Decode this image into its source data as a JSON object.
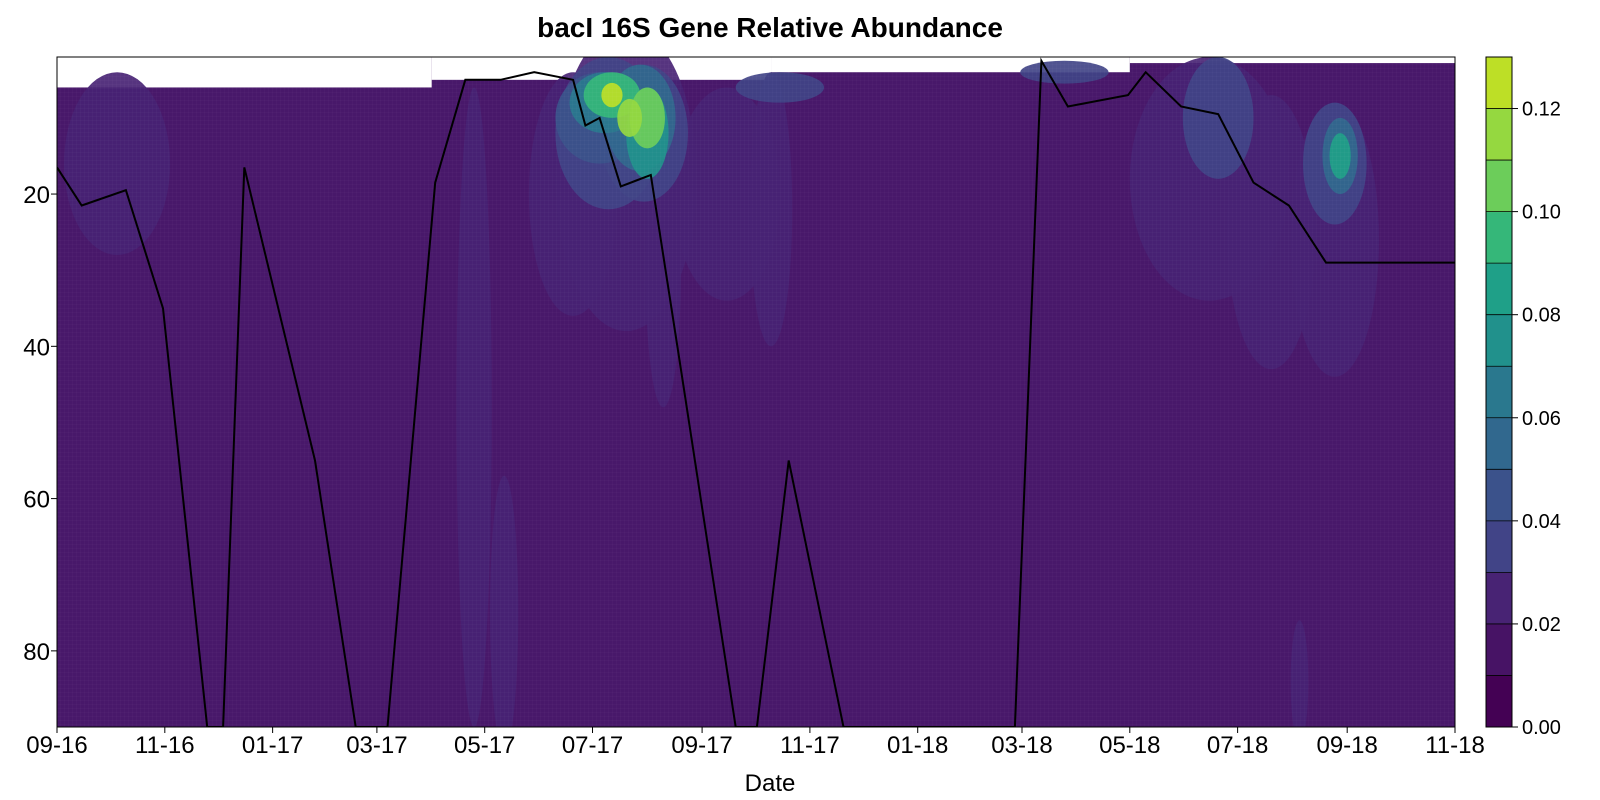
{
  "chart_data": {
    "type": "heatmap",
    "title": "bacI 16S Gene Relative Abundance",
    "xlabel": "Date",
    "ylabel": "",
    "x_ticks": [
      "09-16",
      "11-16",
      "01-17",
      "03-17",
      "05-17",
      "07-17",
      "09-17",
      "11-17",
      "01-18",
      "03-18",
      "05-18",
      "07-18",
      "09-18",
      "11-18"
    ],
    "y_ticks": [
      20,
      40,
      60,
      80
    ],
    "ylim": [
      90,
      2
    ],
    "y_inverted": true,
    "colorbar": {
      "ticks": [
        "0.00",
        "0.02",
        "0.04",
        "0.06",
        "0.08",
        "0.10",
        "0.12"
      ],
      "levels": [
        0.0,
        0.01,
        0.02,
        0.03,
        0.04,
        0.05,
        0.06,
        0.07,
        0.08,
        0.09,
        0.1,
        0.11,
        0.12,
        0.13
      ],
      "colors": [
        "#440154",
        "#471365",
        "#482374",
        "#414487",
        "#3b528b",
        "#31688e",
        "#2a788e",
        "#21918c",
        "#1fa088",
        "#35b779",
        "#6ccd5a",
        "#95d840",
        "#bddf26",
        "#fde725"
      ],
      "colormap": "viridis"
    },
    "background_color": "#48186a",
    "surface_depth": {
      "dates": [
        "2016-09-01",
        "2016-09-15",
        "2016-10-10",
        "2016-10-31",
        "2016-11-25",
        "2016-12-04",
        "2016-12-16",
        "2017-01-25",
        "2017-02-17",
        "2017-03-07",
        "2017-04-03",
        "2017-04-20",
        "2017-05-10",
        "2017-05-29",
        "2017-06-20",
        "2017-06-27",
        "2017-07-05",
        "2017-07-17",
        "2017-08-03",
        "2017-08-20",
        "2017-09-20",
        "2017-10-02",
        "2017-10-20",
        "2017-11-20",
        "2018-02-25",
        "2018-03-12",
        "2018-03-27",
        "2018-04-30",
        "2018-05-10",
        "2018-05-30",
        "2018-06-20",
        "2018-07-10",
        "2018-07-30",
        "2018-08-20",
        "2018-09-10",
        "2018-09-30",
        "2018-10-20",
        "2018-11-10"
      ],
      "depths": [
        16.5,
        21.5,
        19.5,
        35.0,
        90.0,
        90.0,
        16.5,
        55.0,
        90.0,
        90.0,
        18.5,
        5.0,
        5.0,
        4.0,
        5.0,
        11.0,
        10.0,
        19.0,
        17.5,
        43.0,
        90.0,
        90.0,
        55.0,
        90.0,
        90.0,
        2.5,
        8.5,
        7.0,
        4.0,
        8.5,
        9.5,
        18.5,
        21.5,
        29.0,
        29.0,
        29.0,
        29.0,
        29.0
      ]
    }
  }
}
